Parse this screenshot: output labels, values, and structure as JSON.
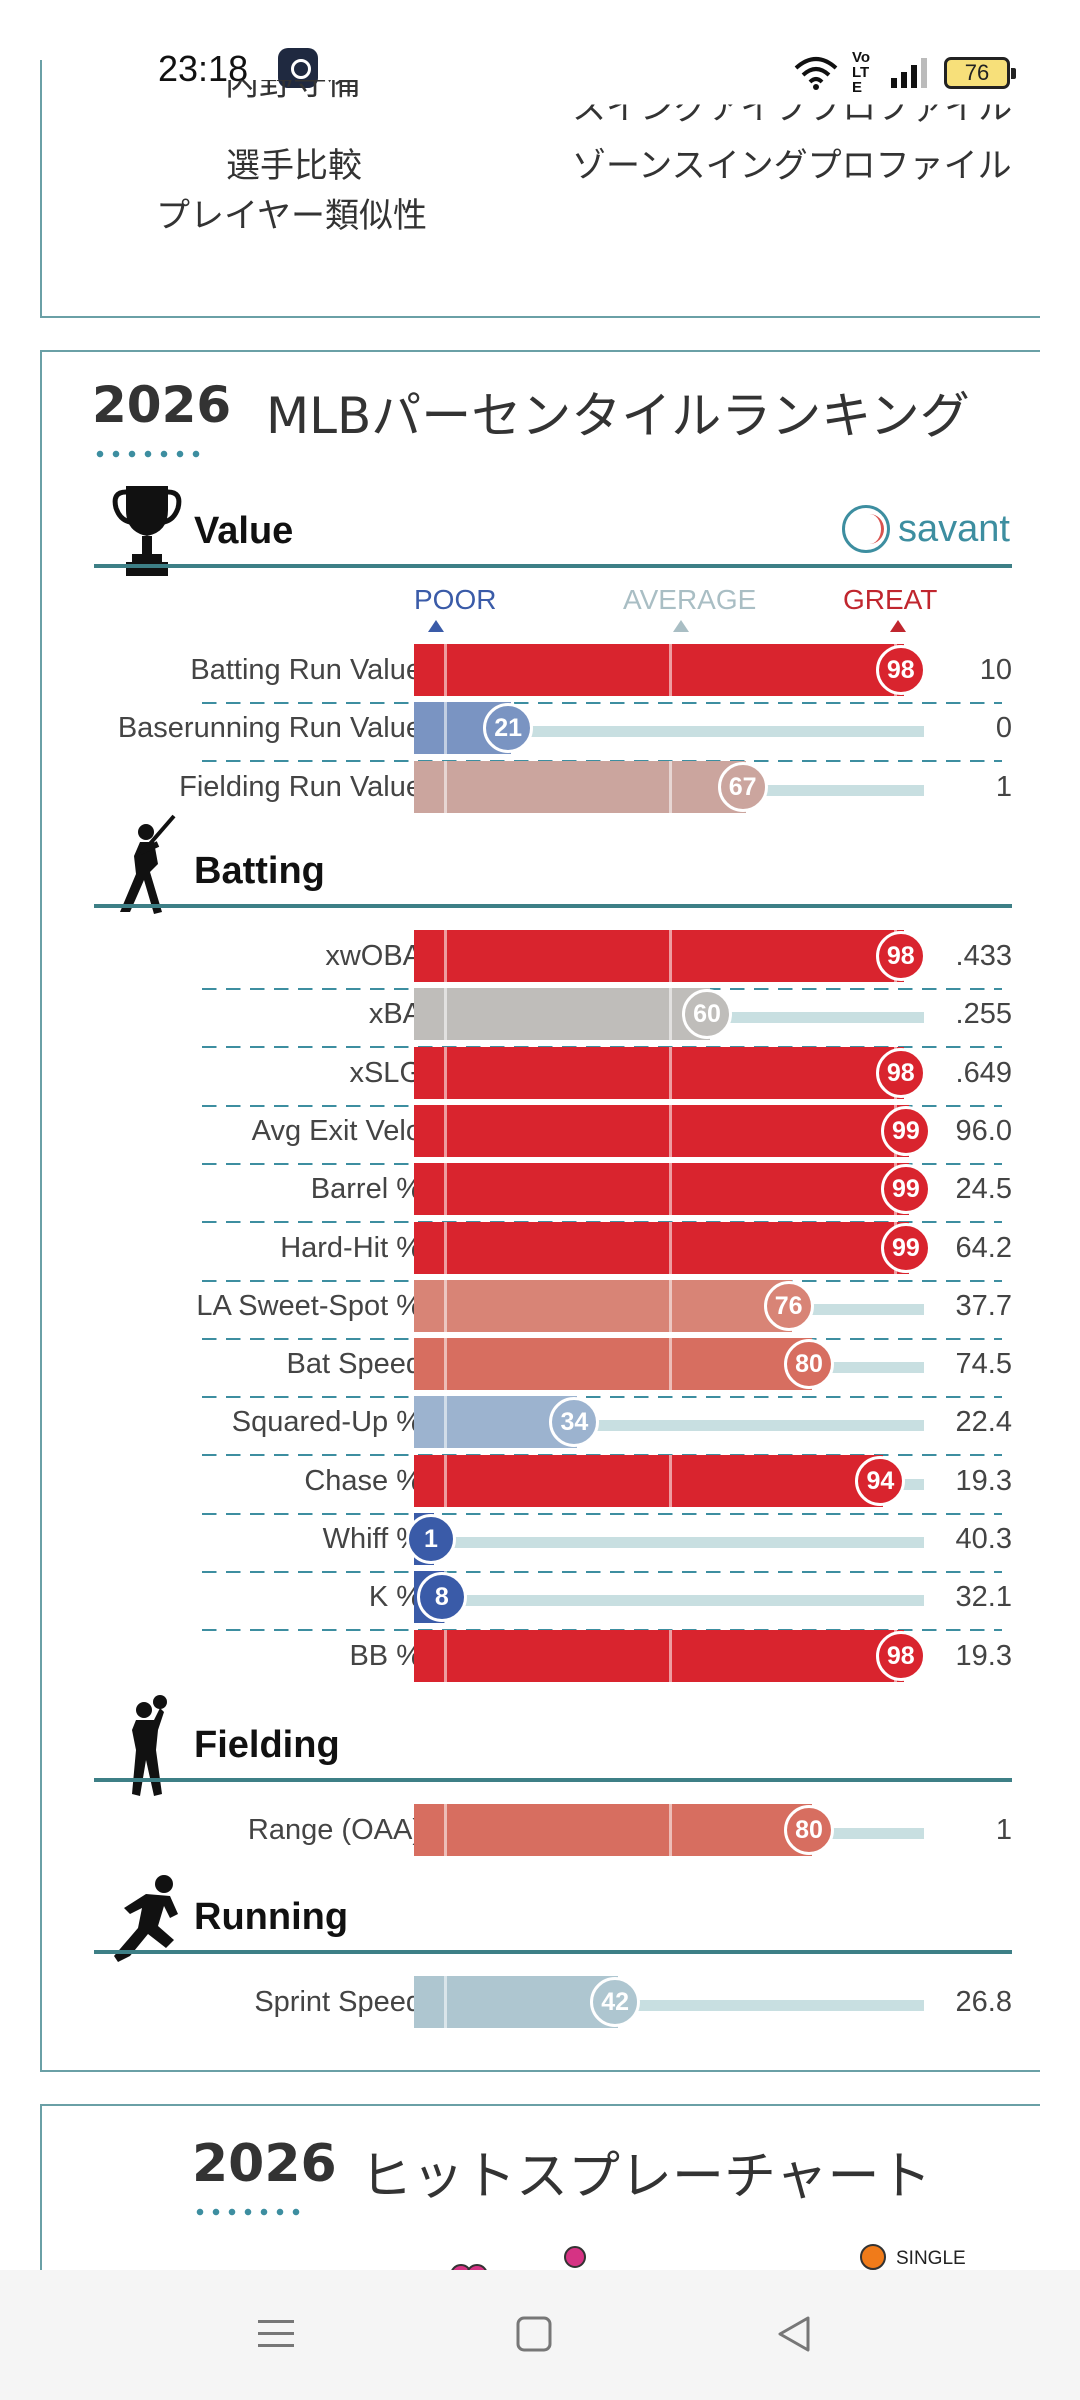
{
  "status": {
    "time": "23:18",
    "battery": "76",
    "volte": "Vo LTE"
  },
  "nav_card": {
    "links_left": [
      "内野守備",
      "選手比較",
      "プレイヤー類似性"
    ],
    "links_right": [
      "スイングアイブプロファイル",
      "ゾーンスイングプロファイル"
    ]
  },
  "percentile": {
    "year": "2026",
    "title": "MLBパーセンタイルランキング",
    "savant": "savant",
    "scale": {
      "poor": "POOR",
      "average": "AVERAGE",
      "great": "GREAT"
    },
    "sections": {
      "value": "Value",
      "batting": "Batting",
      "fielding": "Fielding",
      "running": "Running"
    },
    "value_rows": [
      {
        "label": "Batting Run Value",
        "pct": 98,
        "value": "10",
        "color": "#d9242e"
      },
      {
        "label": "Baserunning Run Value",
        "pct": 21,
        "value": "0",
        "color": "#7a94c2"
      },
      {
        "label": "Fielding Run Value",
        "pct": 67,
        "value": "1",
        "color": "#cba59e"
      }
    ],
    "batting_rows": [
      {
        "label": "xwOBA",
        "pct": 98,
        "value": ".433",
        "color": "#d9242e"
      },
      {
        "label": "xBA",
        "pct": 60,
        "value": ".255",
        "color": "#bfbdba"
      },
      {
        "label": "xSLG",
        "pct": 98,
        "value": ".649",
        "color": "#d9242e"
      },
      {
        "label": "Avg Exit Velo",
        "pct": 99,
        "value": "96.0",
        "color": "#d9242e"
      },
      {
        "label": "Barrel %",
        "pct": 99,
        "value": "24.5",
        "color": "#d9242e"
      },
      {
        "label": "Hard-Hit %",
        "pct": 99,
        "value": "64.2",
        "color": "#d9242e"
      },
      {
        "label": "LA Sweet-Spot %",
        "pct": 76,
        "value": "37.7",
        "color": "#d88476"
      },
      {
        "label": "Bat Speed",
        "pct": 80,
        "value": "74.5",
        "color": "#d76e60"
      },
      {
        "label": "Squared-Up %",
        "pct": 34,
        "value": "22.4",
        "color": "#9cb3cf"
      },
      {
        "label": "Chase %",
        "pct": 94,
        "value": "19.3",
        "color": "#d9242e"
      },
      {
        "label": "Whiff %",
        "pct": 1,
        "value": "40.3",
        "color": "#3a5ba8"
      },
      {
        "label": "K %",
        "pct": 8,
        "value": "32.1",
        "color": "#3a5ba8"
      },
      {
        "label": "BB %",
        "pct": 98,
        "value": "19.3",
        "color": "#d9242e"
      }
    ],
    "fielding_rows": [
      {
        "label": "Range (OAA)",
        "pct": 80,
        "value": "1",
        "color": "#d76e60"
      }
    ],
    "running_rows": [
      {
        "label": "Sprint Speed",
        "pct": 42,
        "value": "26.8",
        "color": "#aec6d0"
      }
    ]
  },
  "spray": {
    "year": "2026",
    "title": "ヒットスプレーチャート",
    "legend_single": "SINGLE"
  }
}
